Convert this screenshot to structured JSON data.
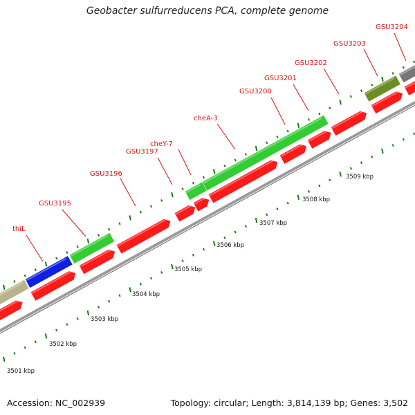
{
  "title": "Geobacter sulfurreducens PCA, complete genome",
  "footer": {
    "accession": "Accession: NC_002939",
    "summary": "Topology: circular; Length: 3,814,139 bp; Genes: 3,502"
  },
  "colors": {
    "label": "#dd1111",
    "tick": "#1a7a1a",
    "backbone": "#9a9a9a",
    "backbone_dark": "#666666"
  },
  "gene_labels": [
    "thiL",
    "GSU3195",
    "GSU3196",
    "GSU3197",
    "cheY-7",
    "cheA-3",
    "GSU3200",
    "GSU3201",
    "GSU3202",
    "GSU3203",
    "GSU3204"
  ],
  "kbp_labels": [
    "3501 kbp",
    "3502 kbp",
    "3503 kbp",
    "3504 kbp",
    "3505 kbp",
    "3506 kbp",
    "3507 kbp",
    "3508 kbp",
    "3509 kbp"
  ]
}
